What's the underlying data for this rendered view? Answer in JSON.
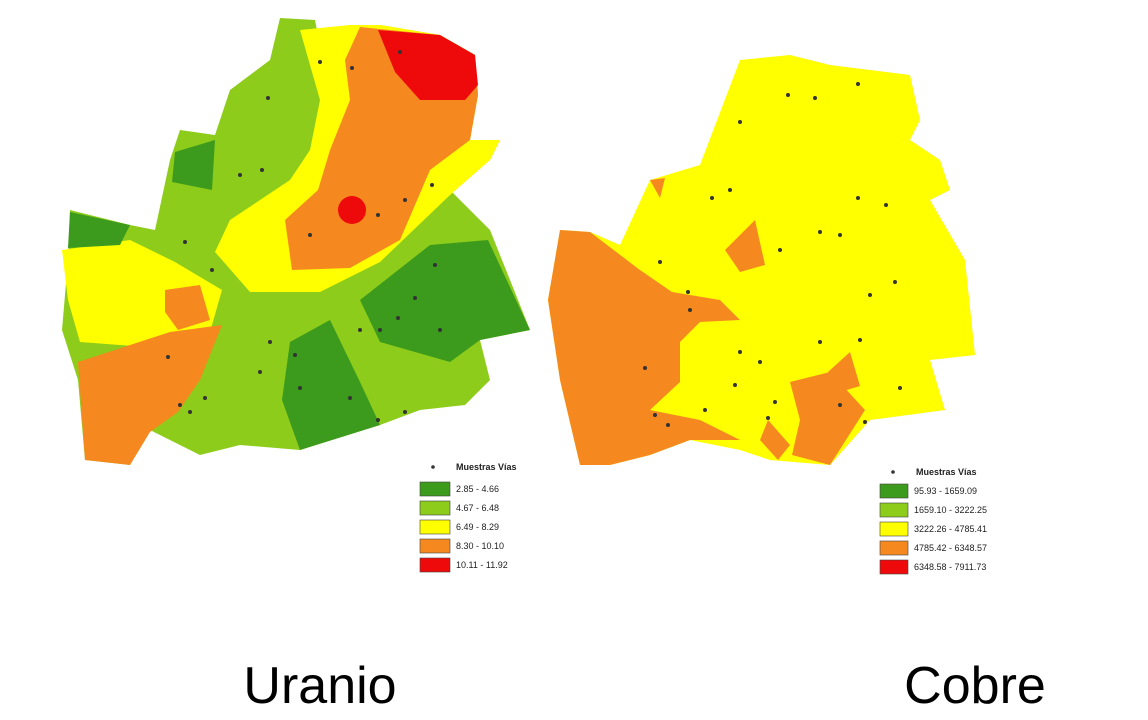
{
  "maps": [
    {
      "caption": "Uranio",
      "legend": {
        "title": "Muestras Vías",
        "classes": [
          {
            "label": "2.85 - 4.66",
            "color": "#3c9b1c"
          },
          {
            "label": "4.67 - 6.48",
            "color": "#8dcc1a"
          },
          {
            "label": "6.49 - 8.29",
            "color": "#ffff00"
          },
          {
            "label": "8.30 - 10.10",
            "color": "#f5891f"
          },
          {
            "label": "10.11 - 11.92",
            "color": "#ee0a0a"
          }
        ]
      }
    },
    {
      "caption": "Cobre",
      "legend": {
        "title": "Muestras Vías",
        "classes": [
          {
            "label": "95.93 - 1659.09",
            "color": "#3c9b1c"
          },
          {
            "label": "1659.10 - 3222.25",
            "color": "#8dcc1a"
          },
          {
            "label": "3222.26 - 4785.41",
            "color": "#ffff00"
          },
          {
            "label": "4785.42 - 6348.57",
            "color": "#f5891f"
          },
          {
            "label": "6348.58 - 7911.73",
            "color": "#ee0a0a"
          }
        ]
      }
    }
  ]
}
